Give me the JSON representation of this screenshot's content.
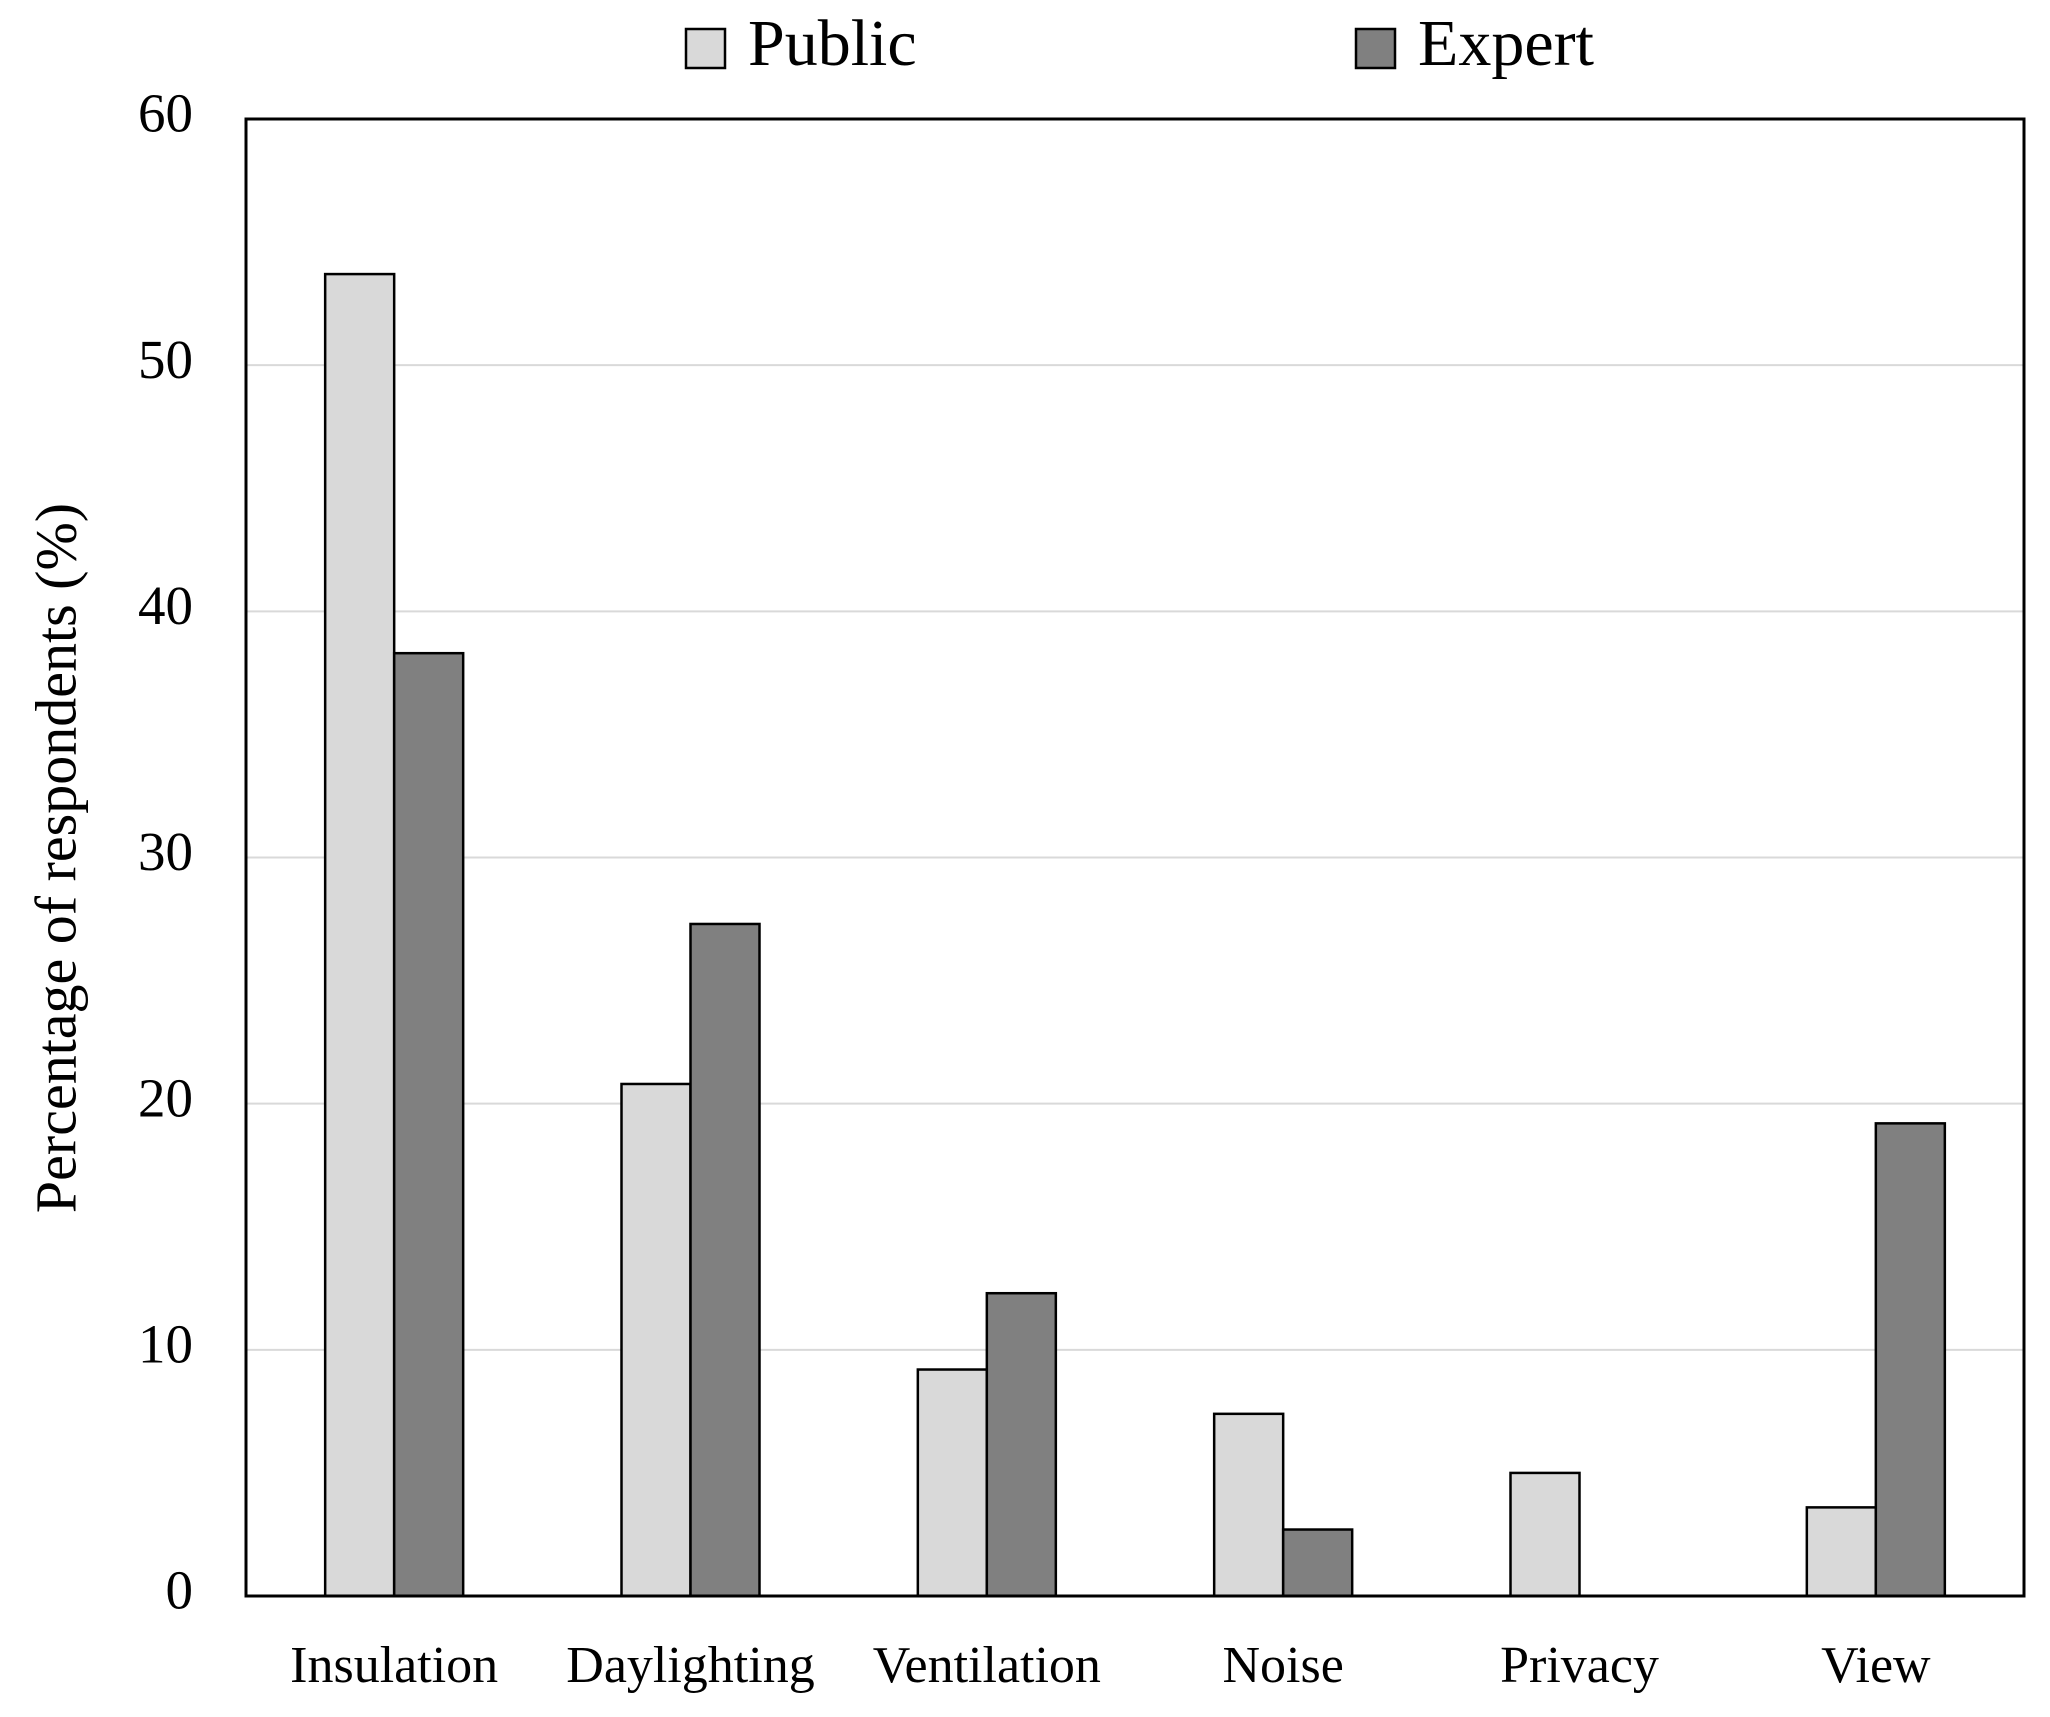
{
  "chart_data": {
    "type": "bar",
    "y_label": "Percentage of respondents (%)",
    "categories": [
      "Insulation",
      "Daylighting",
      "Ventilation",
      "Noise",
      "Privacy",
      "View"
    ],
    "series": [
      {
        "name": "Public",
        "color": "#d9d9d9",
        "values": [
          53.7,
          20.8,
          9.2,
          7.4,
          5.0,
          3.6
        ]
      },
      {
        "name": "Expert",
        "color": "#808080",
        "values": [
          38.3,
          27.3,
          12.3,
          2.7,
          0,
          19.2
        ]
      }
    ],
    "ylim": [
      0,
      60
    ],
    "yticks": [
      0,
      10,
      20,
      30,
      40,
      50,
      60
    ],
    "grid": true,
    "legend": "top"
  }
}
